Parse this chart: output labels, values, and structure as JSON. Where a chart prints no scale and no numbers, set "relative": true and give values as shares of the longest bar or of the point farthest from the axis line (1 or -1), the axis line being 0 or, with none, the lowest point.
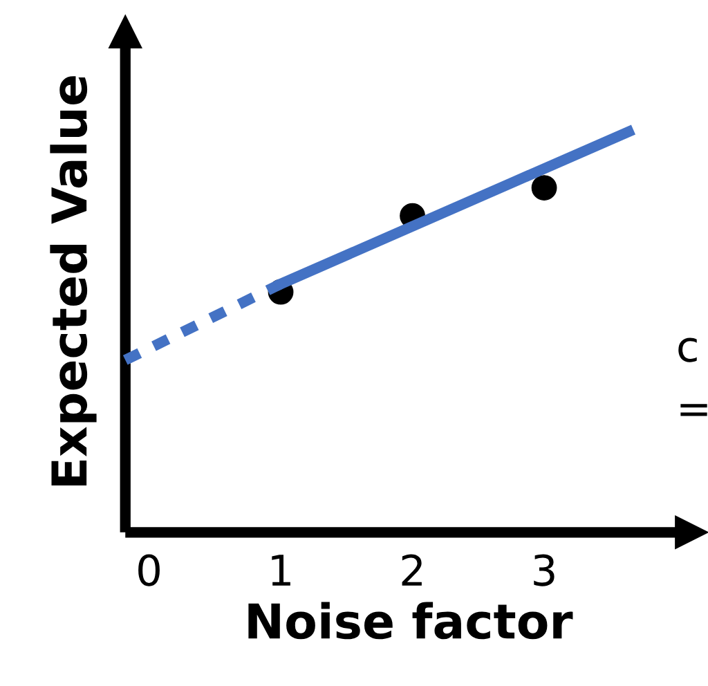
{
  "chart_data": {
    "type": "scatter",
    "xlabel": "Noise factor",
    "ylabel": "Expected Value",
    "relative": true,
    "xlim": [
      -0.18,
      4.12
    ],
    "xticks": [
      0,
      1,
      2,
      3
    ],
    "tick_labels": "x",
    "series": [
      {
        "color": "#000000",
        "x": [
          1,
          2,
          3
        ],
        "values": [
          0.6,
          0.79,
          0.86
        ],
        "marker": "circle"
      },
      {
        "type": "line",
        "color": "#4472c4",
        "x": [
          -0.18,
          1
        ],
        "values": [
          0.43,
          0.62
        ],
        "line_style": "dotted"
      },
      {
        "type": "line",
        "color": "#4472c4",
        "x": [
          1,
          3.64
        ],
        "values": [
          0.62,
          1
        ],
        "line_style": "solid"
      }
    ],
    "annotations": [
      "c",
      "="
    ]
  }
}
